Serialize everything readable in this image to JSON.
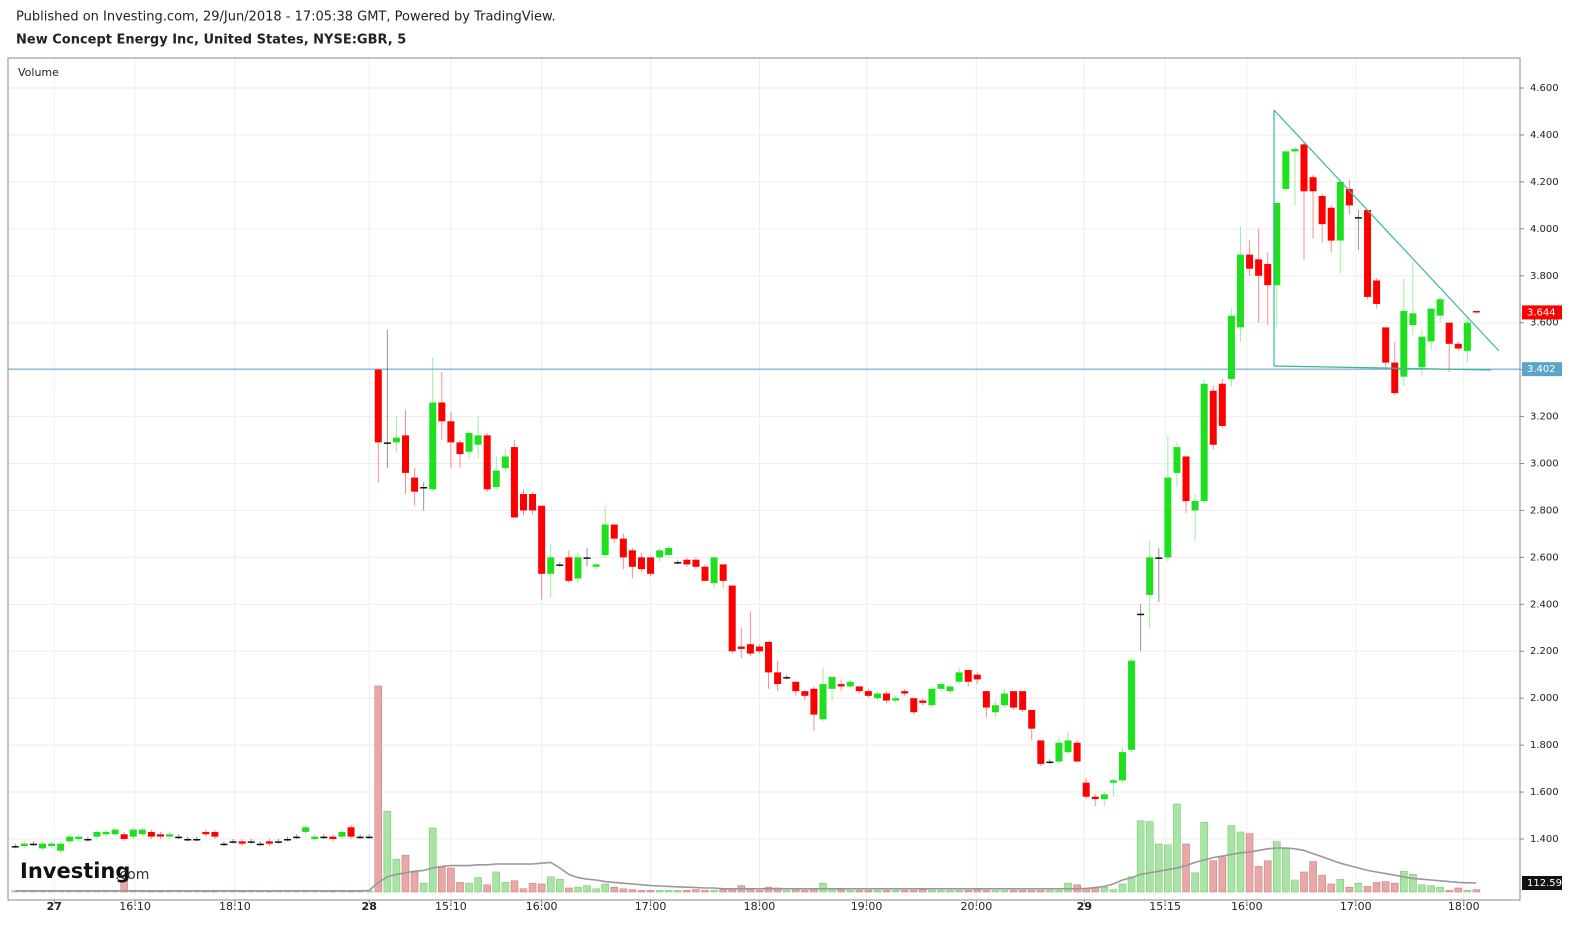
{
  "header": {
    "published": "Published on Investing.com, 29/Jun/2018 - 17:05:38 GMT, Powered by TradingView.",
    "instrument": "New Concept Energy Inc, United States, NYSE:GBR, 5"
  },
  "logo": {
    "name": "Investing",
    "suffix": ".com"
  },
  "chart_data": {
    "type": "candlestick",
    "volume_label": "Volume",
    "up_color": "#1ee01e",
    "down_color": "#ff0000",
    "doji_color": "#111111",
    "volume_up_color": "#a8e4a4",
    "volume_down_color": "#e8a8a8",
    "volume_ma_color": "#999999",
    "hline_color": "#5ba3c9",
    "last_price_color": "#ff0000",
    "hline": 3.402,
    "xlim": [
      -0.8,
      165.8
    ],
    "xticks": [
      {
        "value": 4.3,
        "label": "27"
      },
      {
        "value": 13.2,
        "label": "16:10"
      },
      {
        "value": 24.2,
        "label": "18:10"
      },
      {
        "value": 39,
        "label": "28"
      },
      {
        "value": 48,
        "label": "15:10"
      },
      {
        "value": 58,
        "label": "16:00"
      },
      {
        "value": 70,
        "label": "17:00"
      },
      {
        "value": 82,
        "label": "18:00"
      },
      {
        "value": 93.8,
        "label": "19:00"
      },
      {
        "value": 105.9,
        "label": "20:00"
      },
      {
        "value": 117.8,
        "label": "29"
      },
      {
        "value": 126.7,
        "label": "15:15"
      },
      {
        "value": 135.7,
        "label": "16:00"
      },
      {
        "value": 147.7,
        "label": "17:00"
      },
      {
        "value": 159.6,
        "label": "18:00"
      }
    ],
    "ylim": [
      1.14,
      4.728
    ],
    "yticks": [
      {
        "value": 1.4,
        "label": "1.400"
      },
      {
        "value": 1.6,
        "label": "1.600"
      },
      {
        "value": 1.8,
        "label": "1.800"
      },
      {
        "value": 2.0,
        "label": "2.000"
      },
      {
        "value": 2.2,
        "label": "2.200"
      },
      {
        "value": 2.4,
        "label": "2.400"
      },
      {
        "value": 2.6,
        "label": "2.600"
      },
      {
        "value": 2.8,
        "label": "2.800"
      },
      {
        "value": 3.0,
        "label": "3.000"
      },
      {
        "value": 3.2,
        "label": "3.200"
      },
      {
        "value": 3.4,
        "label": "3.400"
      },
      {
        "value": 3.6,
        "label": "3.600"
      },
      {
        "value": 3.8,
        "label": "3.800"
      },
      {
        "value": 4.0,
        "label": "4.000"
      },
      {
        "value": 4.2,
        "label": "4.200"
      },
      {
        "value": 4.4,
        "label": "4.400"
      },
      {
        "value": 4.6,
        "label": "4.600"
      }
    ],
    "volume_lim": [
      0,
      2600
    ],
    "open": [
      1.37,
      1.37,
      1.38,
      1.36,
      1.37,
      1.35,
      1.39,
      1.4,
      1.4,
      1.41,
      1.42,
      1.42,
      1.42,
      1.41,
      1.42,
      1.43,
      1.42,
      1.41,
      1.41,
      1.4,
      1.4,
      1.43,
      1.43,
      1.38,
      1.39,
      1.39,
      1.39,
      1.38,
      1.39,
      1.39,
      1.4,
      1.41,
      1.43,
      1.4,
      1.41,
      1.41,
      1.41,
      1.45,
      1.41,
      1.41,
      3.4,
      3.09,
      3.09,
      3.12,
      2.94,
      2.9,
      2.89,
      3.26,
      3.18,
      3.09,
      3.05,
      3.08,
      3.12,
      2.9,
      2.98,
      3.07,
      2.87,
      2.87,
      2.82,
      2.53,
      2.57,
      2.6,
      2.51,
      2.6,
      2.56,
      2.61,
      2.74,
      2.68,
      2.63,
      2.6,
      2.6,
      2.6,
      2.61,
      2.58,
      2.59,
      2.59,
      2.56,
      2.49,
      2.57,
      2.48,
      2.22,
      2.23,
      2.22,
      2.24,
      2.11,
      2.09,
      2.07,
      2.03,
      2.04,
      1.91,
      2.04,
      2.06,
      2.05,
      2.05,
      2.03,
      2.0,
      2.02,
      1.99,
      2.03,
      2.0,
      1.99,
      1.97,
      2.04,
      2.03,
      2.07,
      2.12,
      2.1,
      2.03,
      1.94,
      1.97,
      2.03,
      2.03,
      1.95,
      1.82,
      1.73,
      1.73,
      1.77,
      1.81,
      1.64,
      1.58,
      1.57,
      1.64,
      1.65,
      1.78,
      2.36,
      2.44,
      2.6,
      2.6,
      2.96,
      3.03,
      2.8,
      2.84,
      3.31,
      3.34,
      3.36,
      3.58,
      3.89,
      3.87,
      3.85,
      3.76,
      4.17,
      4.33,
      4.36,
      4.22,
      4.14,
      4.09,
      3.95,
      4.17,
      4.05,
      4.08,
      3.78,
      3.58,
      3.43,
      3.37,
      3.59,
      3.41,
      3.52,
      3.63,
      3.6,
      3.51,
      3.48,
      3.65
    ],
    "high": [
      1.38,
      1.39,
      1.39,
      1.39,
      1.39,
      1.39,
      1.42,
      1.42,
      1.41,
      1.44,
      1.44,
      1.45,
      1.43,
      1.45,
      1.45,
      1.44,
      1.43,
      1.43,
      1.42,
      1.41,
      1.41,
      1.44,
      1.44,
      1.39,
      1.4,
      1.4,
      1.4,
      1.39,
      1.4,
      1.4,
      1.41,
      1.42,
      1.46,
      1.42,
      1.42,
      1.42,
      1.44,
      1.46,
      1.42,
      1.42,
      3.4,
      3.57,
      3.2,
      3.23,
      2.98,
      2.92,
      3.45,
      3.39,
      3.22,
      3.1,
      3.14,
      3.2,
      3.13,
      3.03,
      3.06,
      3.1,
      2.89,
      2.88,
      2.82,
      2.66,
      2.58,
      2.63,
      2.62,
      2.64,
      2.58,
      2.82,
      2.74,
      2.7,
      2.64,
      2.62,
      2.6,
      2.64,
      2.65,
      2.59,
      2.6,
      2.6,
      2.57,
      2.6,
      2.57,
      2.48,
      2.3,
      2.37,
      2.23,
      2.24,
      2.16,
      2.1,
      2.07,
      2.03,
      2.05,
      2.13,
      2.09,
      2.08,
      2.08,
      2.05,
      2.04,
      2.03,
      2.03,
      2.01,
      2.04,
      2.0,
      2.0,
      2.05,
      2.07,
      2.05,
      2.13,
      2.12,
      2.11,
      2.03,
      1.99,
      2.04,
      2.03,
      2.03,
      1.95,
      1.82,
      1.74,
      1.83,
      1.86,
      1.82,
      1.66,
      1.59,
      1.6,
      1.66,
      1.79,
      2.17,
      2.4,
      2.67,
      2.64,
      3.12,
      3.09,
      3.03,
      2.87,
      3.36,
      3.33,
      3.36,
      3.66,
      4.01,
      3.95,
      4.0,
      3.9,
      4.11,
      4.34,
      4.35,
      4.37,
      4.23,
      4.15,
      4.1,
      4.2,
      4.21,
      4.08,
      4.08,
      3.79,
      3.58,
      3.52,
      3.79,
      3.86,
      3.57,
      3.66,
      3.71,
      3.6,
      3.52,
      3.62,
      3.65
    ],
    "low": [
      1.36,
      1.36,
      1.37,
      1.35,
      1.36,
      1.34,
      1.38,
      1.39,
      1.39,
      1.4,
      1.41,
      1.41,
      1.39,
      1.4,
      1.41,
      1.4,
      1.4,
      1.4,
      1.4,
      1.39,
      1.39,
      1.41,
      1.4,
      1.37,
      1.38,
      1.37,
      1.38,
      1.37,
      1.37,
      1.38,
      1.39,
      1.4,
      1.42,
      1.39,
      1.4,
      1.39,
      1.4,
      1.4,
      1.4,
      1.4,
      2.92,
      2.98,
      3.05,
      2.87,
      2.82,
      2.8,
      2.88,
      3.1,
      2.98,
      2.98,
      3.02,
      3.02,
      2.88,
      2.89,
      2.96,
      2.77,
      2.78,
      2.78,
      2.42,
      2.43,
      2.56,
      2.49,
      2.49,
      2.56,
      2.55,
      2.6,
      2.66,
      2.55,
      2.51,
      2.54,
      2.52,
      2.58,
      2.6,
      2.57,
      2.56,
      2.55,
      2.5,
      2.47,
      2.47,
      2.19,
      2.17,
      2.18,
      2.19,
      2.04,
      2.03,
      2.08,
      2.01,
      1.99,
      1.86,
      1.9,
      1.99,
      2.03,
      2.04,
      2.02,
      2.0,
      1.99,
      1.98,
      1.98,
      2.01,
      1.93,
      1.97,
      1.96,
      2.03,
      2.02,
      2.06,
      2.05,
      2.06,
      1.92,
      1.92,
      1.96,
      1.95,
      1.94,
      1.82,
      1.71,
      1.72,
      1.72,
      1.76,
      1.73,
      1.57,
      1.54,
      1.54,
      1.58,
      1.64,
      1.77,
      2.2,
      2.3,
      2.41,
      2.58,
      2.9,
      2.79,
      2.67,
      2.83,
      3.06,
      3.15,
      3.33,
      3.52,
      3.8,
      3.6,
      3.59,
      3.58,
      4.16,
      4.1,
      3.87,
      3.96,
      3.94,
      3.9,
      3.81,
      4.06,
      3.91,
      3.7,
      3.66,
      3.4,
      3.29,
      3.33,
      3.55,
      3.37,
      3.48,
      3.6,
      3.39,
      3.48,
      3.43,
      3.64
    ],
    "close": [
      1.37,
      1.38,
      1.38,
      1.38,
      1.38,
      1.38,
      1.41,
      1.41,
      1.4,
      1.43,
      1.43,
      1.44,
      1.4,
      1.44,
      1.44,
      1.41,
      1.41,
      1.42,
      1.41,
      1.4,
      1.4,
      1.42,
      1.41,
      1.38,
      1.39,
      1.38,
      1.39,
      1.38,
      1.38,
      1.39,
      1.4,
      1.41,
      1.45,
      1.41,
      1.41,
      1.4,
      1.43,
      1.41,
      1.41,
      1.41,
      3.09,
      3.09,
      3.11,
      2.96,
      2.88,
      2.9,
      3.26,
      3.18,
      3.09,
      3.04,
      3.13,
      3.12,
      2.89,
      2.97,
      3.03,
      2.77,
      2.8,
      2.8,
      2.53,
      2.6,
      2.57,
      2.5,
      2.6,
      2.6,
      2.57,
      2.74,
      2.68,
      2.6,
      2.56,
      2.55,
      2.53,
      2.63,
      2.64,
      2.58,
      2.57,
      2.56,
      2.5,
      2.6,
      2.5,
      2.2,
      2.21,
      2.19,
      2.2,
      2.11,
      2.06,
      2.09,
      2.03,
      2.01,
      1.93,
      2.06,
      2.09,
      2.05,
      2.07,
      2.03,
      2.01,
      2.02,
      1.99,
      2.0,
      2.02,
      1.94,
      1.98,
      2.04,
      2.06,
      2.05,
      2.11,
      2.07,
      2.08,
      1.96,
      1.97,
      2.02,
      1.96,
      1.95,
      1.87,
      1.72,
      1.73,
      1.81,
      1.82,
      1.73,
      1.58,
      1.57,
      1.59,
      1.65,
      1.77,
      2.16,
      2.36,
      2.6,
      2.6,
      2.94,
      3.07,
      2.84,
      2.84,
      3.34,
      3.08,
      3.16,
      3.63,
      3.89,
      3.83,
      3.8,
      3.76,
      4.11,
      4.33,
      4.34,
      4.16,
      4.16,
      4.02,
      3.95,
      4.2,
      4.1,
      4.05,
      3.71,
      3.68,
      3.43,
      3.3,
      3.65,
      3.64,
      3.54,
      3.66,
      3.7,
      3.51,
      3.49,
      3.6,
      3.644
    ],
    "volume": [
      15,
      15,
      15,
      15,
      15,
      15,
      15,
      15,
      15,
      15,
      15,
      15,
      150,
      15,
      15,
      15,
      15,
      15,
      15,
      15,
      15,
      15,
      15,
      15,
      15,
      15,
      15,
      15,
      15,
      15,
      15,
      15,
      15,
      15,
      15,
      15,
      15,
      15,
      15,
      15,
      2575,
      1010,
      410,
      460,
      250,
      110,
      800,
      310,
      300,
      120,
      110,
      180,
      90,
      250,
      120,
      140,
      40,
      110,
      100,
      190,
      160,
      50,
      60,
      80,
      40,
      100,
      60,
      40,
      30,
      20,
      20,
      20,
      20,
      20,
      20,
      30,
      20,
      20,
      30,
      40,
      80,
      30,
      20,
      60,
      50,
      20,
      40,
      20,
      30,
      110,
      40,
      30,
      20,
      20,
      20,
      20,
      20,
      20,
      20,
      20,
      30,
      20,
      20,
      20,
      20,
      20,
      30,
      20,
      20,
      20,
      20,
      20,
      20,
      20,
      20,
      20,
      110,
      90,
      40,
      60,
      60,
      30,
      100,
      190,
      890,
      880,
      600,
      590,
      1100,
      600,
      240,
      870,
      390,
      440,
      830,
      750,
      730,
      320,
      390,
      630,
      540,
      150,
      250,
      380,
      210,
      100,
      160,
      60,
      110,
      70,
      120,
      130,
      110,
      260,
      220,
      90,
      80,
      60,
      20,
      50,
      20,
      30
    ],
    "volume_ma": [
      15,
      15,
      15,
      15,
      15,
      15,
      15,
      15,
      15,
      15,
      15,
      15,
      15,
      15,
      15,
      15,
      15,
      15,
      15,
      15,
      15,
      15,
      15,
      15,
      15,
      15,
      15,
      15,
      15,
      15,
      15,
      15,
      15,
      15,
      15,
      15,
      15,
      15,
      15,
      20,
      120,
      190,
      220,
      240,
      260,
      270,
      300,
      320,
      330,
      330,
      330,
      340,
      340,
      350,
      350,
      350,
      350,
      350,
      360,
      370,
      300,
      220,
      180,
      160,
      150,
      130,
      120,
      110,
      100,
      90,
      80,
      75,
      70,
      65,
      60,
      55,
      50,
      50,
      40,
      40,
      40,
      40,
      40,
      40,
      40,
      40,
      40,
      40,
      40,
      40,
      40,
      40,
      40,
      40,
      40,
      40,
      40,
      40,
      40,
      40,
      40,
      40,
      40,
      40,
      40,
      40,
      40,
      40,
      40,
      40,
      40,
      40,
      40,
      40,
      40,
      40,
      40,
      40,
      45,
      55,
      70,
      100,
      150,
      180,
      220,
      240,
      260,
      280,
      300,
      330,
      370,
      400,
      430,
      450,
      470,
      490,
      500,
      520,
      540,
      550,
      550,
      540,
      520,
      480,
      440,
      400,
      360,
      330,
      300,
      270,
      250,
      230,
      210,
      190,
      170,
      160,
      150,
      140,
      130,
      120,
      115,
      112.59
    ]
  }
}
